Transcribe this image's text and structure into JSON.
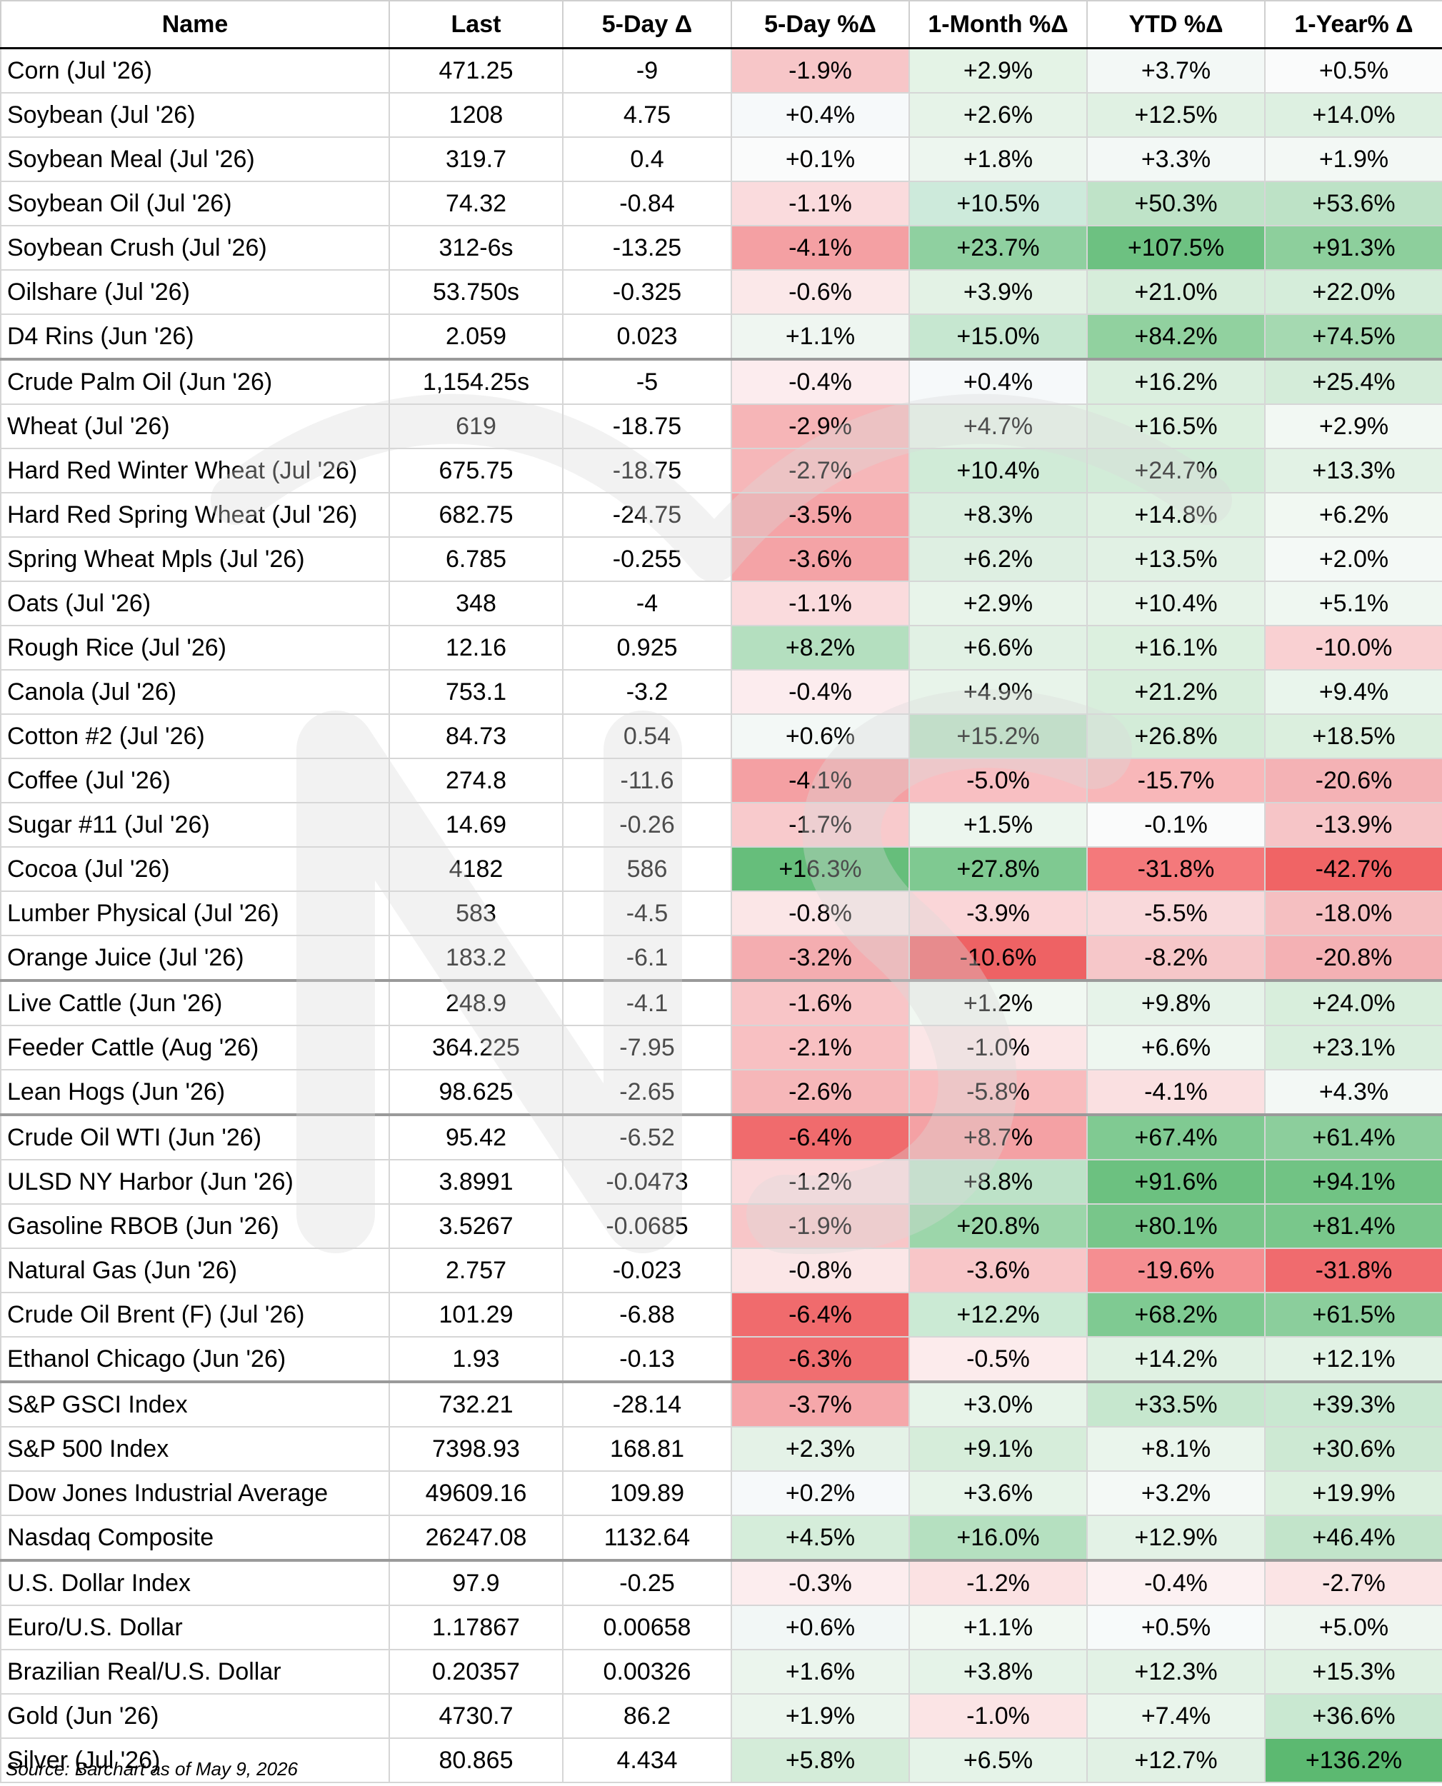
{
  "table": {
    "headers": [
      "Name",
      "Last",
      "5-Day Δ",
      "5-Day %Δ",
      "1-Month %Δ",
      "YTD %Δ",
      "1-Year% Δ"
    ],
    "rows": [
      [
        "Corn (Jul '26)",
        "471.25",
        "-9",
        "-1.9%",
        "+2.9%",
        "+3.7%",
        "+0.5%"
      ],
      [
        "Soybean (Jul '26)",
        "1208",
        "4.75",
        "+0.4%",
        "+2.6%",
        "+12.5%",
        "+14.0%"
      ],
      [
        "Soybean Meal (Jul '26)",
        "319.7",
        "0.4",
        "+0.1%",
        "+1.8%",
        "+3.3%",
        "+1.9%"
      ],
      [
        "Soybean Oil (Jul '26)",
        "74.32",
        "-0.84",
        "-1.1%",
        "+10.5%",
        "+50.3%",
        "+53.6%"
      ],
      [
        "Soybean Crush (Jul '26)",
        "312-6s",
        "-13.25",
        "-4.1%",
        "+23.7%",
        "+107.5%",
        "+91.3%"
      ],
      [
        "Oilshare (Jul '26)",
        "53.750s",
        "-0.325",
        "-0.6%",
        "+3.9%",
        "+21.0%",
        "+22.0%"
      ],
      [
        "D4 Rins (Jun '26)",
        "2.059",
        "0.023",
        "+1.1%",
        "+15.0%",
        "+84.2%",
        "+74.5%"
      ],
      [
        "Crude Palm Oil (Jun '26)",
        "1,154.25s",
        "-5",
        "-0.4%",
        "+0.4%",
        "+16.2%",
        "+25.4%"
      ],
      [
        "Wheat (Jul '26)",
        "619",
        "-18.75",
        "-2.9%",
        "+4.7%",
        "+16.5%",
        "+2.9%"
      ],
      [
        "Hard Red Winter Wheat (Jul '26)",
        "675.75",
        "-18.75",
        "-2.7%",
        "+10.4%",
        "+24.7%",
        "+13.3%"
      ],
      [
        "Hard Red Spring Wheat (Jul '26)",
        "682.75",
        "-24.75",
        "-3.5%",
        "+8.3%",
        "+14.8%",
        "+6.2%"
      ],
      [
        "Spring Wheat Mpls (Jul '26)",
        "6.785",
        "-0.255",
        "-3.6%",
        "+6.2%",
        "+13.5%",
        "+2.0%"
      ],
      [
        "Oats (Jul '26)",
        "348",
        "-4",
        "-1.1%",
        "+2.9%",
        "+10.4%",
        "+5.1%"
      ],
      [
        "Rough Rice (Jul '26)",
        "12.16",
        "0.925",
        "+8.2%",
        "+6.6%",
        "+16.1%",
        "-10.0%"
      ],
      [
        "Canola (Jul '26)",
        "753.1",
        "-3.2",
        "-0.4%",
        "+4.9%",
        "+21.2%",
        "+9.4%"
      ],
      [
        "Cotton #2 (Jul '26)",
        "84.73",
        "0.54",
        "+0.6%",
        "+15.2%",
        "+26.8%",
        "+18.5%"
      ],
      [
        "Coffee (Jul '26)",
        "274.8",
        "-11.6",
        "-4.1%",
        "-5.0%",
        "-15.7%",
        "-20.6%"
      ],
      [
        "Sugar #11 (Jul '26)",
        "14.69",
        "-0.26",
        "-1.7%",
        "+1.5%",
        "-0.1%",
        "-13.9%"
      ],
      [
        "Cocoa (Jul '26)",
        "4182",
        "586",
        "+16.3%",
        "+27.8%",
        "-31.8%",
        "-42.7%"
      ],
      [
        "Lumber Physical (Jul '26)",
        "583",
        "-4.5",
        "-0.8%",
        "-3.9%",
        "-5.5%",
        "-18.0%"
      ],
      [
        "Orange Juice (Jul '26)",
        "183.2",
        "-6.1",
        "-3.2%",
        "-10.6%",
        "-8.2%",
        "-20.8%"
      ],
      [
        "Live Cattle (Jun '26)",
        "248.9",
        "-4.1",
        "-1.6%",
        "+1.2%",
        "+9.8%",
        "+24.0%"
      ],
      [
        "Feeder Cattle (Aug '26)",
        "364.225",
        "-7.95",
        "-2.1%",
        "-1.0%",
        "+6.6%",
        "+23.1%"
      ],
      [
        "Lean Hogs (Jun '26)",
        "98.625",
        "-2.65",
        "-2.6%",
        "-5.8%",
        "-4.1%",
        "+4.3%"
      ],
      [
        "Crude Oil WTI (Jun '26)",
        "95.42",
        "-6.52",
        "-6.4%",
        "+8.7%",
        "+67.4%",
        "+61.4%"
      ],
      [
        "ULSD NY Harbor (Jun '26)",
        "3.8991",
        "-0.0473",
        "-1.2%",
        "+8.8%",
        "+91.6%",
        "+94.1%"
      ],
      [
        "Gasoline RBOB (Jun '26)",
        "3.5267",
        "-0.0685",
        "-1.9%",
        "+20.8%",
        "+80.1%",
        "+81.4%"
      ],
      [
        "Natural Gas (Jun '26)",
        "2.757",
        "-0.023",
        "-0.8%",
        "-3.6%",
        "-19.6%",
        "-31.8%"
      ],
      [
        "Crude Oil Brent (F) (Jul '26)",
        "101.29",
        "-6.88",
        "-6.4%",
        "+12.2%",
        "+68.2%",
        "+61.5%"
      ],
      [
        "Ethanol Chicago (Jun '26)",
        "1.93",
        "-0.13",
        "-6.3%",
        "-0.5%",
        "+14.2%",
        "+12.1%"
      ],
      [
        "S&P GSCI Index",
        "732.21",
        "-28.14",
        "-3.7%",
        "+3.0%",
        "+33.5%",
        "+39.3%"
      ],
      [
        "S&P 500 Index",
        "7398.93",
        "168.81",
        "+2.3%",
        "+9.1%",
        "+8.1%",
        "+30.6%"
      ],
      [
        "Dow Jones Industrial Average",
        "49609.16",
        "109.89",
        "+0.2%",
        "+3.6%",
        "+3.2%",
        "+19.9%"
      ],
      [
        "Nasdaq Composite",
        "26247.08",
        "1132.64",
        "+4.5%",
        "+16.0%",
        "+12.9%",
        "+46.4%"
      ],
      [
        "U.S. Dollar Index",
        "97.9",
        "-0.25",
        "-0.3%",
        "-1.2%",
        "-0.4%",
        "-2.7%"
      ],
      [
        "Euro/U.S. Dollar",
        "1.17867",
        "0.00658",
        "+0.6%",
        "+1.1%",
        "+0.5%",
        "+5.0%"
      ],
      [
        "Brazilian Real/U.S. Dollar",
        "0.20357",
        "0.00326",
        "+1.6%",
        "+3.8%",
        "+12.3%",
        "+15.3%"
      ],
      [
        "Gold (Jun '26)",
        "4730.7",
        "86.2",
        "+1.9%",
        "-1.0%",
        "+7.4%",
        "+36.6%"
      ],
      [
        "Silver (Jul '26)",
        "80.865",
        "4.434",
        "+5.8%",
        "+6.5%",
        "+12.7%",
        "+136.2%"
      ]
    ],
    "cell_colors": [
      [
        null,
        null,
        null,
        "#f7c6c8",
        "#e4f3e6",
        "#f3f8f6",
        "#fafbfb"
      ],
      [
        null,
        null,
        null,
        "#f6f9fa",
        "#e6f3e8",
        "#e0f1e3",
        "#ddf0e1"
      ],
      [
        null,
        null,
        null,
        "#fafbfb",
        "#edf6ef",
        "#f3f8f6",
        "#f3f8f5"
      ],
      [
        null,
        null,
        null,
        "#fadbdd",
        "#cdeadb",
        "#bfe3c8",
        "#bde2c6"
      ],
      [
        null,
        null,
        null,
        "#f4a0a3",
        "#8fd0a0",
        "#6dc181",
        "#8dcf9c"
      ],
      [
        null,
        null,
        null,
        "#fbe8e9",
        "#e3f2e5",
        "#d6edda",
        "#d5edda"
      ],
      [
        null,
        null,
        null,
        "#eff6f1",
        "#c6e7d0",
        "#91d19f",
        "#a5d9b1"
      ],
      [
        null,
        null,
        null,
        "#fcecee",
        "#f6f9fa",
        "#dbefdf",
        "#d4ecd9"
      ],
      [
        null,
        null,
        null,
        "#f6b5b7",
        "#e5f3e7",
        "#dcf0df",
        "#f2f8f3"
      ],
      [
        null,
        null,
        null,
        "#f6b7b9",
        "#d0ebd7",
        "#d2ecd8",
        "#e2f2e5"
      ],
      [
        null,
        null,
        null,
        "#f4a4a7",
        "#daeedf",
        "#dff1e2",
        "#f1f8f2"
      ],
      [
        null,
        null,
        null,
        "#f4a3a6",
        "#deefe2",
        "#e1f1e4",
        "#f4f9f6"
      ],
      [
        null,
        null,
        null,
        "#fadbdd",
        "#e8f4ea",
        "#e6f3e8",
        "#eff7f1"
      ],
      [
        null,
        null,
        null,
        "#b4dfbf",
        "#e1f1e4",
        "#dcf0df",
        "#f9d0d2"
      ],
      [
        null,
        null,
        null,
        "#fcecee",
        "#e8f4ea",
        "#d8eedc",
        "#e9f5ec"
      ],
      [
        null,
        null,
        null,
        "#f3f8f6",
        "#b5e0c0",
        "#d3ecd8",
        "#dbefde"
      ],
      [
        null,
        null,
        null,
        "#f4a0a3",
        "#f8bfc2",
        "#f8b7b9",
        "#f4b2b5"
      ],
      [
        null,
        null,
        null,
        "#f8cacc",
        "#ecf6ee",
        "#fafbfb",
        "#f6c5c7"
      ],
      [
        null,
        null,
        null,
        "#66be7b",
        "#7fc991",
        "#f4797b",
        "#f06465"
      ],
      [
        null,
        null,
        null,
        "#fbe6e7",
        "#fad6d8",
        "#f9d9db",
        "#f5bfc1"
      ],
      [
        null,
        null,
        null,
        "#f4adb0",
        "#ee6264",
        "#f6c7c9",
        "#f4b1b4"
      ],
      [
        null,
        null,
        null,
        "#f8c5c7",
        "#f1f8f2",
        "#e6f3e9",
        "#d8eedc"
      ],
      [
        null,
        null,
        null,
        "#f8c0c2",
        "#fbe6e7",
        "#eef7f0",
        "#d9eedd"
      ],
      [
        null,
        null,
        null,
        "#f6b7b9",
        "#f8bcbe",
        "#fae0e1",
        "#f3f8f5"
      ],
      [
        null,
        null,
        null,
        "#f06b6d",
        "#f4a1a4",
        "#80ca92",
        "#8cce9c"
      ],
      [
        null,
        null,
        null,
        "#fadbdd",
        "#bde2c8",
        "#6cc180",
        "#71c384"
      ],
      [
        null,
        null,
        null,
        "#f8c6c8",
        "#9cd6aa",
        "#78c68a",
        "#79c78b"
      ],
      [
        null,
        null,
        null,
        "#fbe6e7",
        "#f8c6c8",
        "#f58e91",
        "#f06b6e"
      ],
      [
        null,
        null,
        null,
        "#f06b6d",
        "#cbead4",
        "#7fca92",
        "#8bce9c"
      ],
      [
        null,
        null,
        null,
        "#f06e70",
        "#fcebec",
        "#e0f1e3",
        "#e2f2e5"
      ],
      [
        null,
        null,
        null,
        "#f5a7aa",
        "#e7f4e9",
        "#c6e7ce",
        "#c9e8d1"
      ],
      [
        null,
        null,
        null,
        "#e4f2e7",
        "#d6edda",
        "#eaf5ec",
        "#cde9d3"
      ],
      [
        null,
        null,
        null,
        "#f6f9fa",
        "#e7f4e9",
        "#f4f9f6",
        "#dcf0df"
      ],
      [
        null,
        null,
        null,
        "#d5edda",
        "#b5e0c0",
        "#e3f2e6",
        "#c2e4ca"
      ],
      [
        null,
        null,
        null,
        "#fcedee",
        "#fbe2e3",
        "#fcf1f2",
        "#fbe4e5"
      ],
      [
        null,
        null,
        null,
        "#f2f7f6",
        "#f1f8f2",
        "#f7fafa",
        "#eef6f0"
      ],
      [
        null,
        null,
        null,
        "#ebf5ed",
        "#e5f3e8",
        "#e2f2e5",
        "#dff1e2"
      ],
      [
        null,
        null,
        null,
        "#ebf5ed",
        "#fbe4e5",
        "#eaf5ec",
        "#c9e8d1"
      ],
      [
        null,
        null,
        null,
        "#d4ecd9",
        "#e5f3e8",
        "#e1f1e4",
        "#5cb971"
      ]
    ]
  },
  "source_text": "Source: Barchart as of May 9, 2026"
}
